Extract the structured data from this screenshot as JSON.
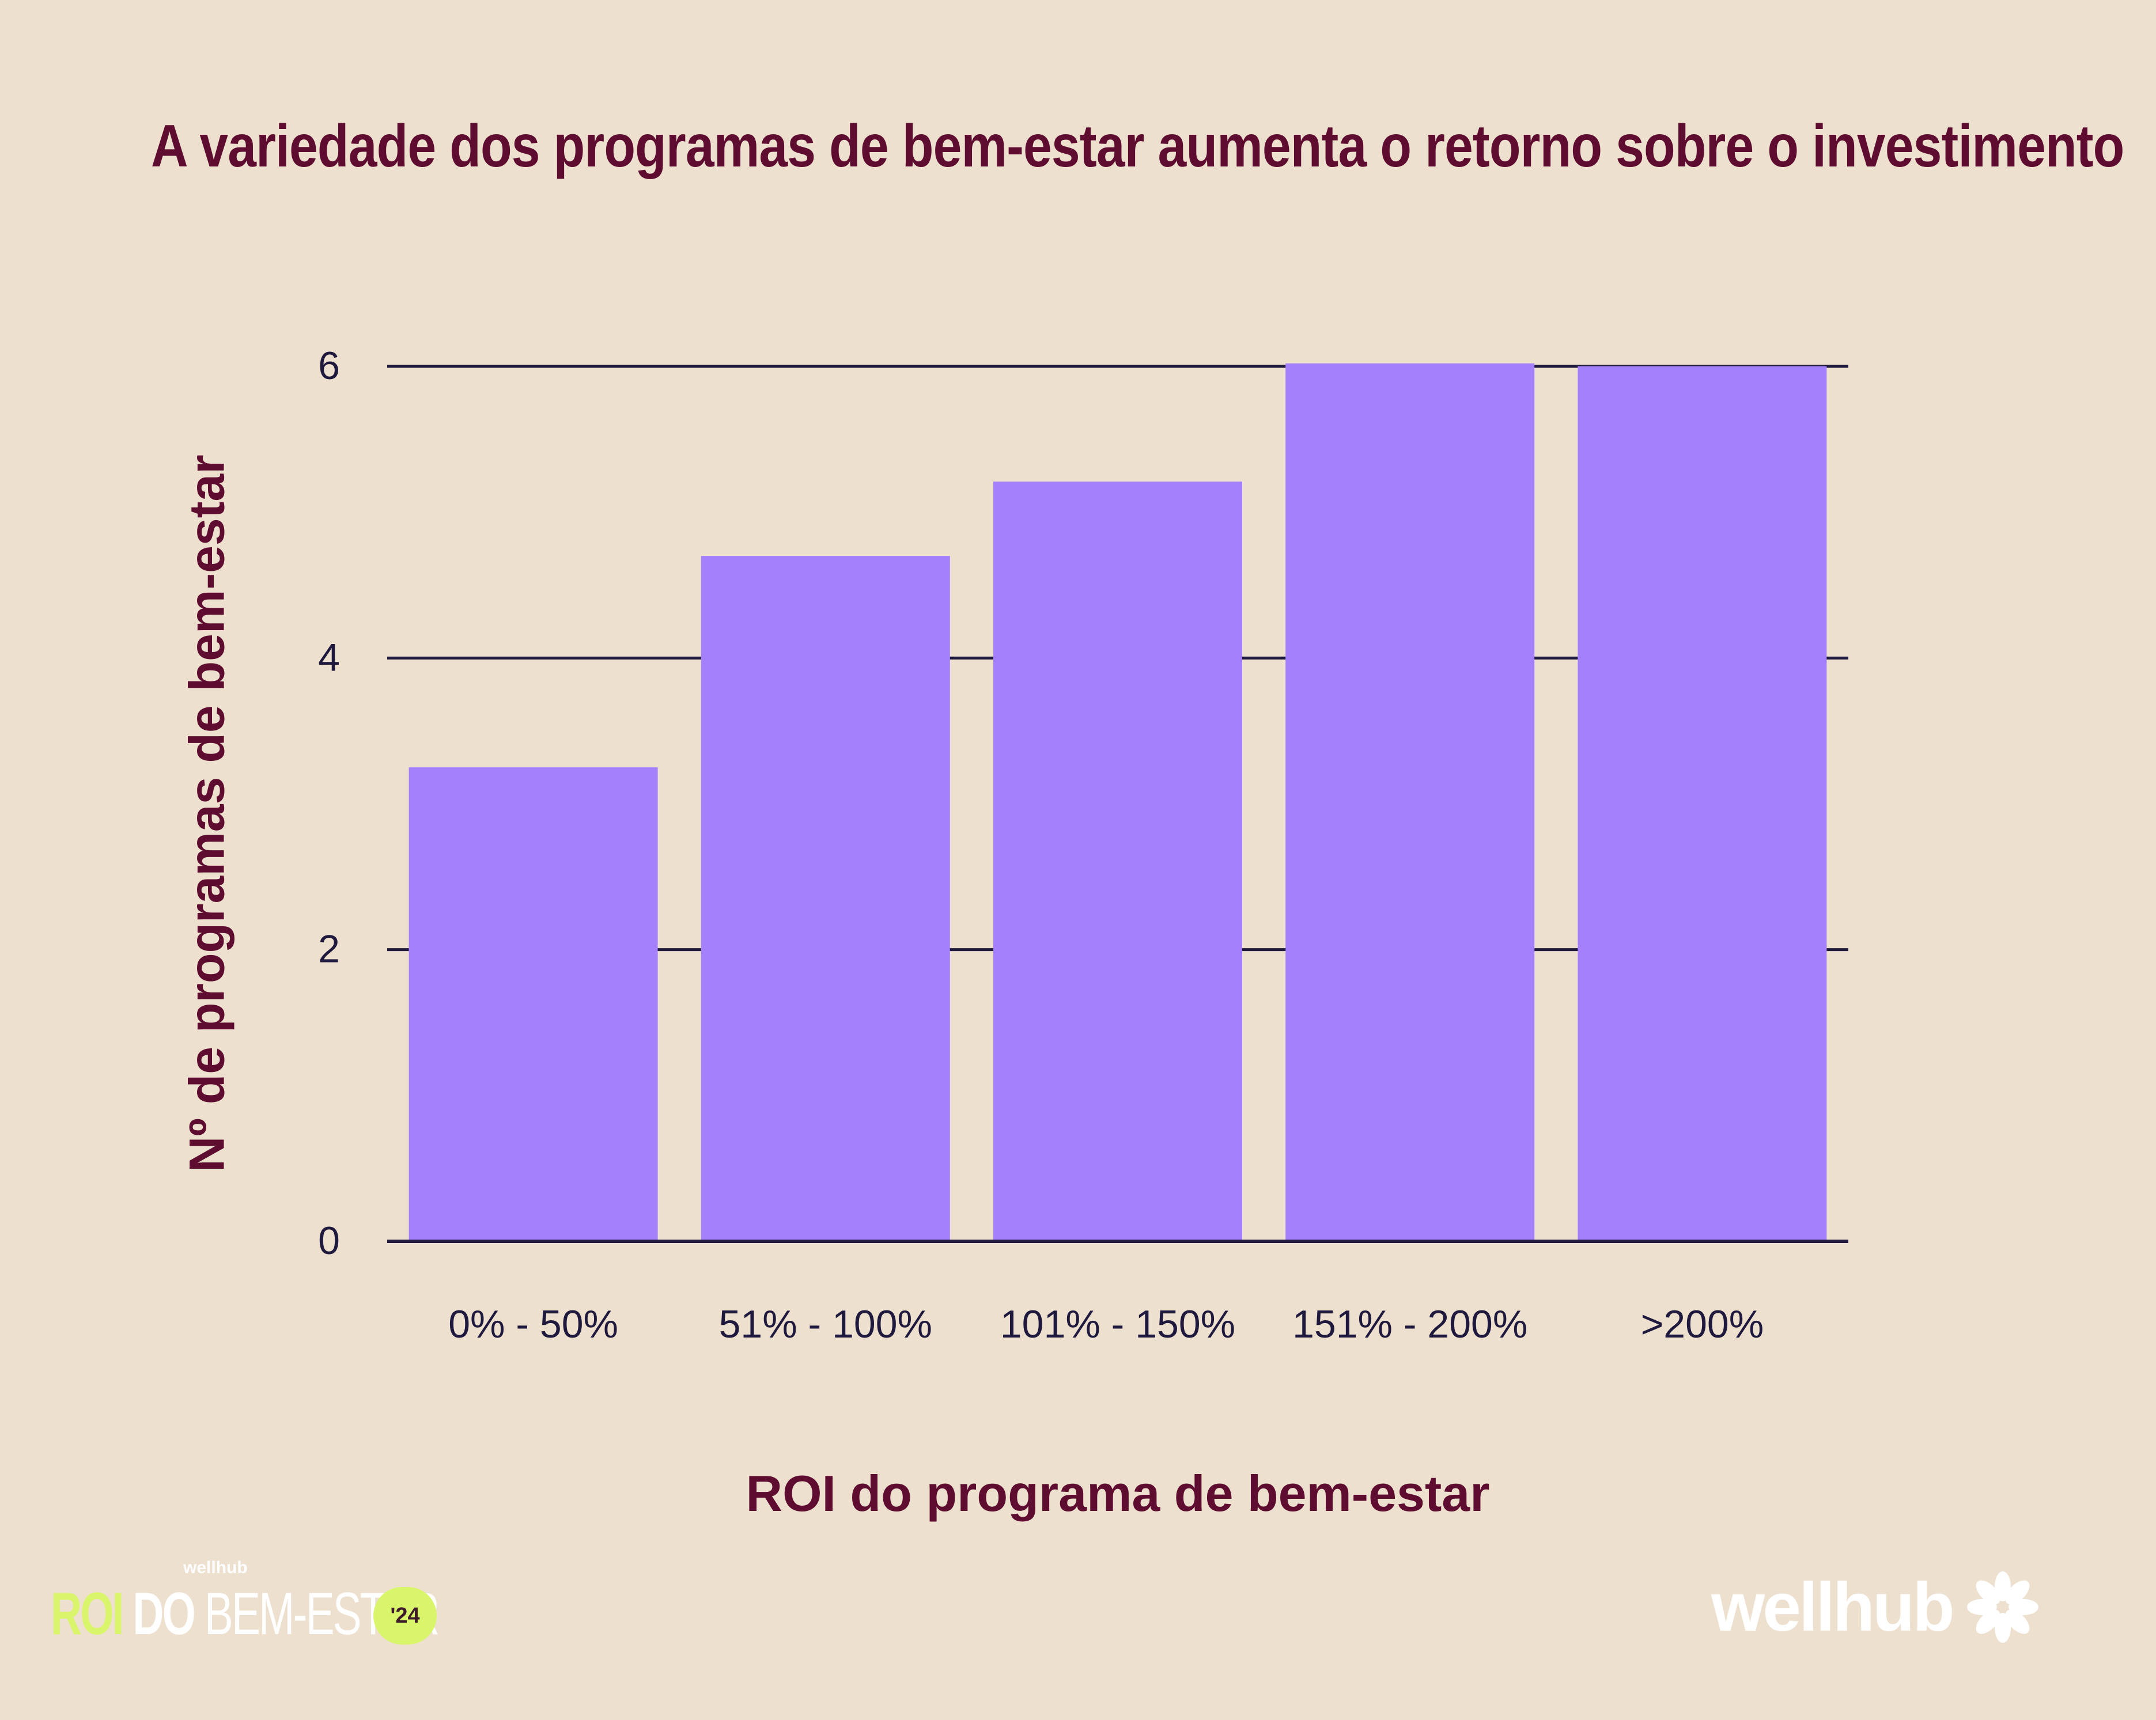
{
  "chart_data": {
    "type": "bar",
    "title": "A variedade dos programas de bem-estar aumenta o retorno sobre o investimento",
    "xlabel": "ROI do programa de bem-estar",
    "ylabel": "Nº de programas de bem-estar",
    "categories": [
      "0% - 50%",
      "51% - 100%",
      "101% - 150%",
      "151% - 200%",
      ">200%"
    ],
    "values": [
      3.25,
      4.7,
      5.21,
      6.02,
      6.0
    ],
    "ylim": [
      0,
      6
    ],
    "yticks": [
      0,
      2,
      4,
      6
    ],
    "grid": true,
    "legend": "none",
    "bar_color": "#a580fd",
    "grid_color": "#1f1a3d",
    "text_color": "#1f1a3d",
    "title_color": "#5e0c2f"
  },
  "footer": {
    "badge_small": "wellhub",
    "badge_roi": "ROI",
    "badge_do": "DO",
    "badge_be": "BEM-ESTAR",
    "badge_year": "'24",
    "brand": "wellhub",
    "brand_icon": "wellhub-flower-icon"
  }
}
